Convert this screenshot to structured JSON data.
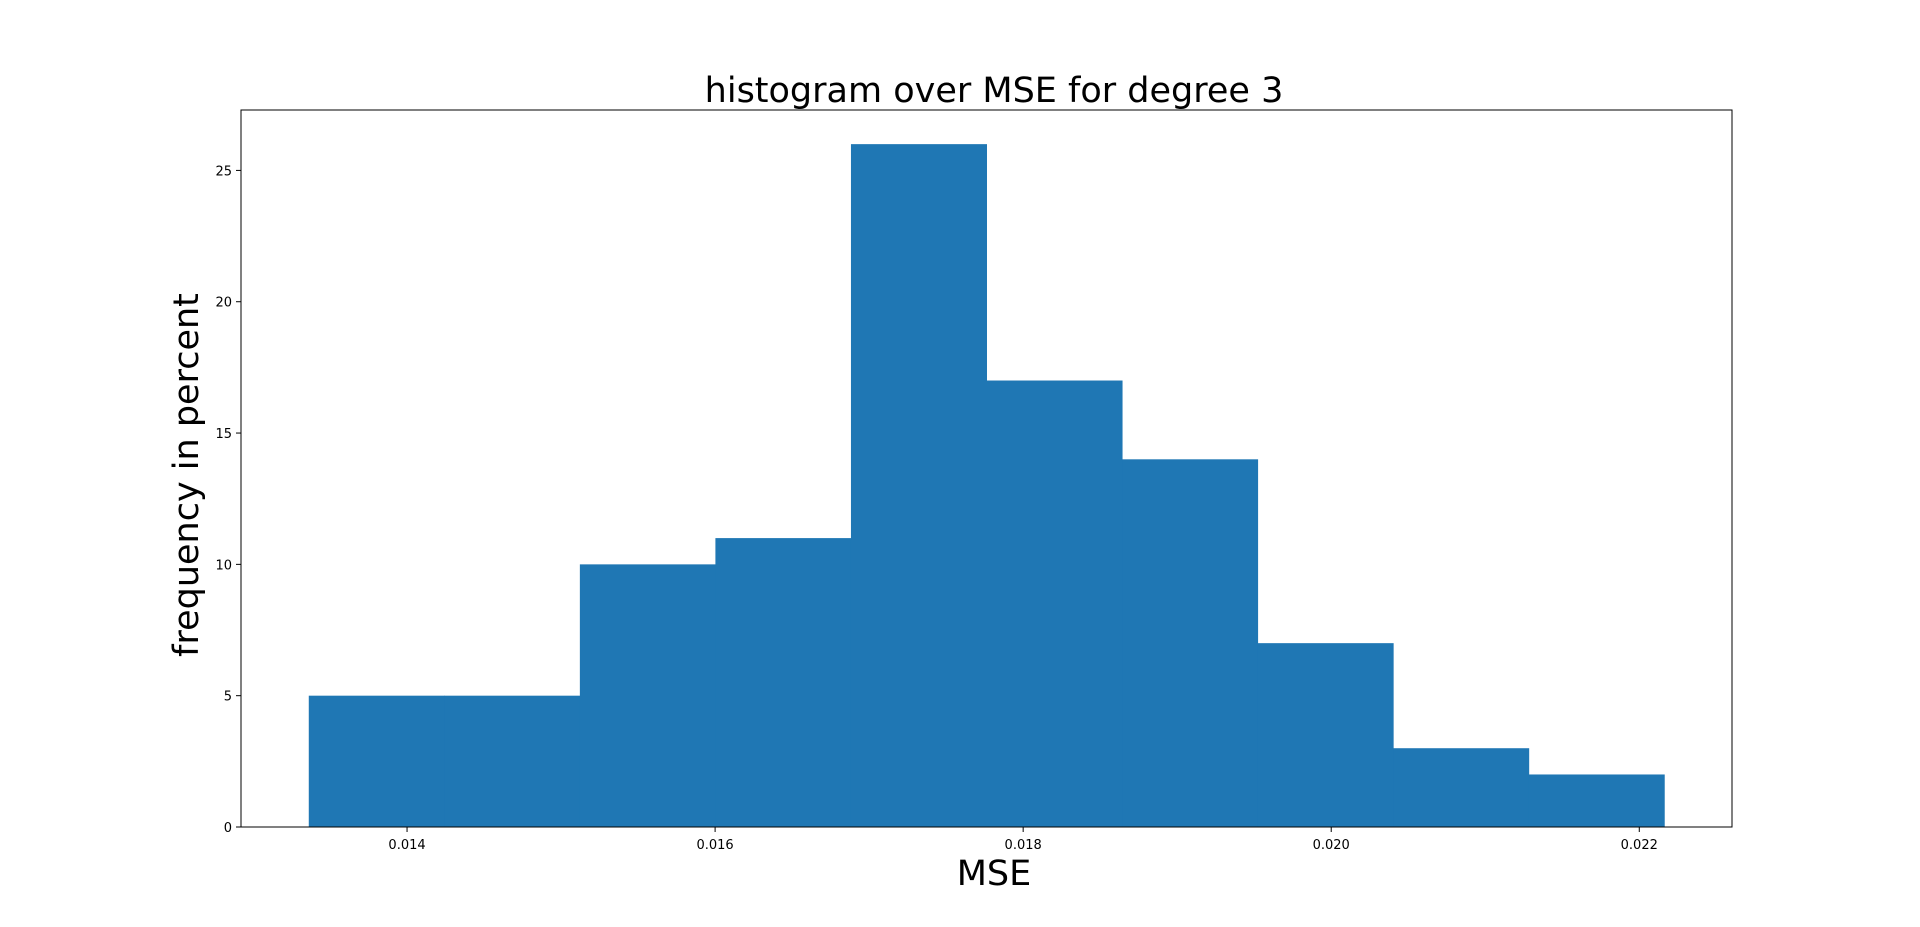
{
  "chart_data": {
    "type": "bar",
    "title": "histogram over MSE for degree 3",
    "xlabel": "MSE",
    "ylabel": "frequency in percent",
    "bin_edges": [
      0.013362,
      0.014242,
      0.015122,
      0.016002,
      0.016882,
      0.017762,
      0.018642,
      0.019522,
      0.020402,
      0.021282,
      0.022162
    ],
    "values": [
      5,
      5,
      10,
      11,
      26,
      17,
      14,
      7,
      3,
      2
    ],
    "xlim": [
      0.012922,
      0.022602
    ],
    "ylim": [
      0,
      27.3
    ],
    "xticks": [
      0.014,
      0.016,
      0.018,
      0.02,
      0.022
    ],
    "xtick_labels": [
      "0.014",
      "0.016",
      "0.018",
      "0.020",
      "0.022"
    ],
    "yticks": [
      0,
      5,
      10,
      15,
      20,
      25
    ],
    "ytick_labels": [
      "0",
      "5",
      "10",
      "15",
      "20",
      "25"
    ],
    "bar_color": "#1f77b4",
    "grid": false,
    "legend": "none"
  }
}
